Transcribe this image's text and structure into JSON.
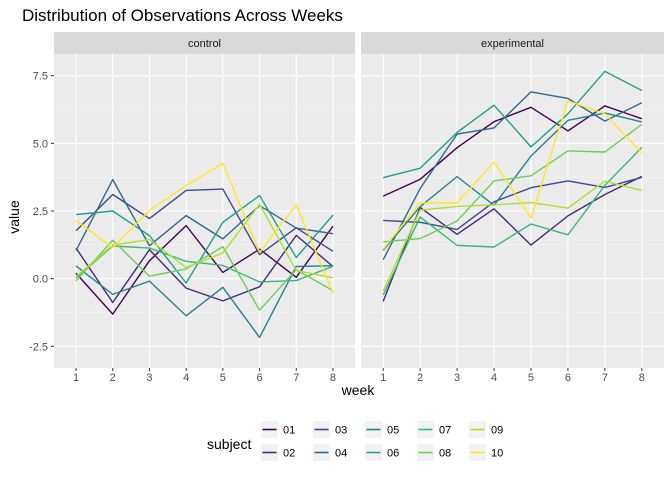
{
  "chart_data": {
    "type": "line",
    "title": "Distribution of Observations Across Weeks",
    "xlabel": "week",
    "ylabel": "value",
    "x": [
      1,
      2,
      3,
      4,
      5,
      6,
      7,
      8
    ],
    "ylim": [
      -2.5,
      7.5
    ],
    "yticks": [
      "-2.5",
      "0.0",
      "2.5",
      "5.0",
      "7.5"
    ],
    "grid": true,
    "legend": {
      "title": "subject",
      "placement": "bottom",
      "entries": [
        "01",
        "02",
        "03",
        "04",
        "05",
        "06",
        "07",
        "08",
        "09",
        "10"
      ]
    },
    "colors": {
      "01": "#440154",
      "02": "#482878",
      "03": "#3E4A89",
      "04": "#31688E",
      "05": "#26828E",
      "06": "#1F9E89",
      "07": "#35B779",
      "08": "#6DCD59",
      "09": "#B4DE2C",
      "10": "#FDE725"
    },
    "panels": [
      {
        "label": "control",
        "series": [
          {
            "name": "01",
            "values": [
              0.2,
              -1.31,
              0.66,
              1.96,
              0.23,
              1.09,
              0.05,
              1.94
            ]
          },
          {
            "name": "02",
            "values": [
              1.13,
              -0.88,
              1.07,
              -0.35,
              -0.82,
              -0.3,
              1.6,
              0.45
            ]
          },
          {
            "name": "03",
            "values": [
              1.77,
              3.11,
              2.22,
              3.26,
              3.31,
              0.89,
              1.88,
              1.01
            ]
          },
          {
            "name": "04",
            "values": [
              1.04,
              3.66,
              1.22,
              2.33,
              1.47,
              2.7,
              1.87,
              1.66
            ]
          },
          {
            "name": "05",
            "values": [
              0.47,
              -0.58,
              -0.09,
              -1.37,
              -0.32,
              -2.17,
              0.45,
              0.48
            ]
          },
          {
            "name": "06",
            "values": [
              2.37,
              2.5,
              1.59,
              -0.16,
              2.08,
              3.07,
              0.78,
              2.35
            ]
          },
          {
            "name": "07",
            "values": [
              0.03,
              1.21,
              1.13,
              0.64,
              0.49,
              -0.12,
              -0.07,
              0.46
            ]
          },
          {
            "name": "08",
            "values": [
              -0.08,
              1.42,
              0.09,
              0.36,
              1.18,
              -1.16,
              0.33,
              -0.44
            ]
          },
          {
            "name": "09",
            "values": [
              0.08,
              1.24,
              1.44,
              0.41,
              0.95,
              2.75,
              0.3,
              0.03
            ]
          },
          {
            "name": "10",
            "values": [
              2.14,
              1.15,
              2.52,
              3.44,
              4.26,
              0.97,
              2.73,
              -0.53
            ]
          }
        ]
      },
      {
        "label": "experimental",
        "series": [
          {
            "name": "01",
            "values": [
              3.05,
              3.67,
              4.84,
              5.8,
              6.33,
              5.46,
              6.38,
              5.91
            ]
          },
          {
            "name": "02",
            "values": [
              -0.84,
              2.63,
              1.64,
              2.58,
              1.24,
              2.32,
              3.11,
              3.78
            ]
          },
          {
            "name": "03",
            "values": [
              2.15,
              2.08,
              1.82,
              2.84,
              3.36,
              3.61,
              3.37,
              3.74
            ]
          },
          {
            "name": "04",
            "values": [
              0.7,
              3.33,
              5.34,
              5.57,
              6.9,
              6.66,
              5.82,
              6.5
            ]
          },
          {
            "name": "05",
            "values": [
              1.05,
              2.66,
              3.77,
              2.71,
              4.53,
              5.85,
              6.12,
              5.79
            ]
          },
          {
            "name": "06",
            "values": [
              3.73,
              4.08,
              5.4,
              6.41,
              4.87,
              6.09,
              7.66,
              6.95
            ]
          },
          {
            "name": "07",
            "values": [
              -0.6,
              2.28,
              1.23,
              1.17,
              2.02,
              1.62,
              3.45,
              4.85
            ]
          },
          {
            "name": "08",
            "values": [
              1.36,
              1.48,
              2.13,
              3.61,
              3.8,
              4.72,
              4.68,
              5.7
            ]
          },
          {
            "name": "09",
            "values": [
              -0.46,
              2.53,
              2.67,
              2.73,
              2.81,
              2.61,
              3.6,
              3.26
            ]
          },
          {
            "name": "10",
            "values": [
              1.09,
              2.8,
              2.8,
              4.3,
              2.25,
              6.57,
              6.09,
              4.64
            ]
          }
        ]
      }
    ]
  }
}
